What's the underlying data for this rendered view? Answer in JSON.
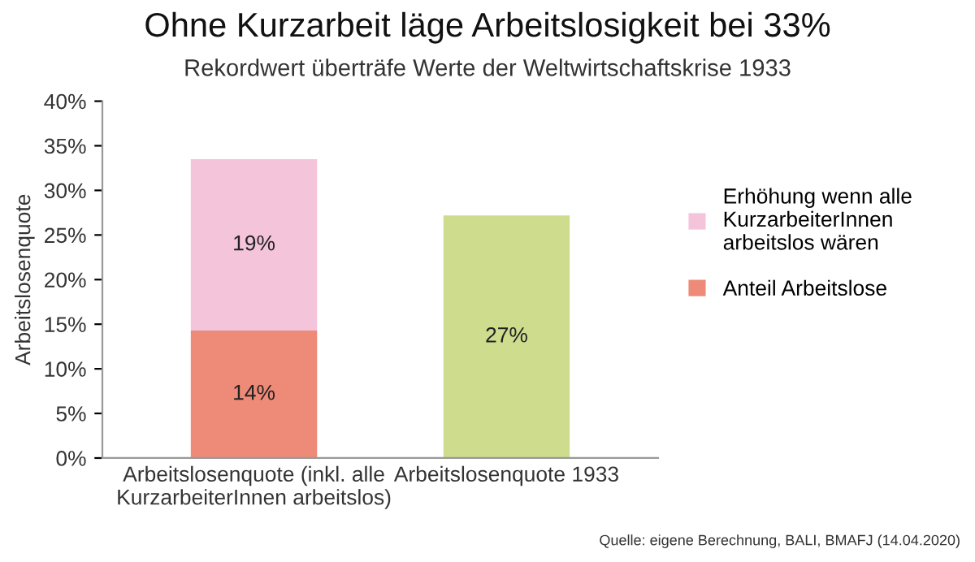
{
  "chart_data": {
    "type": "bar",
    "title": "Ohne Kurzarbeit läge Arbeitslosigkeit bei 33%",
    "subtitle": "Rekordwert überträfe Werte der Weltwirtschaftskrise 1933",
    "ylabel": "Arbeitslosenquote",
    "categories": [
      "Arbeitslosenquote (inkl. alle\nKurzarbeiterInnen arbeitslos)",
      "Arbeitslosenquote 1933"
    ],
    "stacked": true,
    "series": [
      {
        "name": "Anteil Arbeitslose",
        "color": "#ee8a78",
        "values": [
          14.3,
          null
        ],
        "value_labels": [
          "14%",
          null
        ]
      },
      {
        "name": "Erhöhung wenn alle\nKurzarbeiterInnen\narbeitslos wären",
        "color": "#f4c4da",
        "values": [
          19.2,
          null
        ],
        "value_labels": [
          "19%",
          null
        ]
      },
      {
        "color": "#cedc8e",
        "values": [
          null,
          27.2
        ],
        "value_labels": [
          null,
          "27%"
        ]
      }
    ],
    "ylim": [
      0,
      40
    ],
    "yticks": [
      {
        "value": 0,
        "label": "0%"
      },
      {
        "value": 5,
        "label": "5%"
      },
      {
        "value": 10,
        "label": "10%"
      },
      {
        "value": 15,
        "label": "15%"
      },
      {
        "value": 20,
        "label": "20%"
      },
      {
        "value": 25,
        "label": "25%"
      },
      {
        "value": 30,
        "label": "30%"
      },
      {
        "value": 35,
        "label": "35%"
      },
      {
        "value": 40,
        "label": "40%"
      }
    ],
    "grid": false,
    "legend": "right",
    "annotations": [
      "Quelle: eigene Berechnung, BALI, BMAFJ (14.04.2020)"
    ]
  }
}
